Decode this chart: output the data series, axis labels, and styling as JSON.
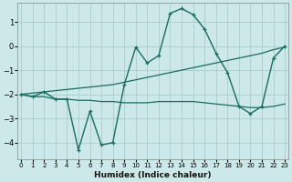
{
  "title": "",
  "xlabel": "Humidex (Indice chaleur)",
  "background_color": "#cce8e8",
  "grid_color": "#aacccc",
  "line_color": "#1a6b60",
  "x_data": [
    0,
    1,
    2,
    3,
    4,
    5,
    6,
    7,
    8,
    9,
    10,
    11,
    12,
    13,
    14,
    15,
    16,
    17,
    18,
    19,
    20,
    21,
    22,
    23
  ],
  "series1": [
    -2.0,
    -2.1,
    -1.9,
    -2.2,
    -2.2,
    -4.3,
    -2.7,
    -4.1,
    -4.0,
    -1.6,
    -0.05,
    -0.7,
    -0.4,
    1.35,
    1.55,
    1.3,
    0.7,
    -0.3,
    -1.1,
    -2.5,
    -2.8,
    -2.5,
    -0.5,
    0.0
  ],
  "series2": [
    -2.0,
    -1.95,
    -1.9,
    -1.85,
    -1.8,
    -1.75,
    -1.7,
    -1.65,
    -1.6,
    -1.5,
    -1.4,
    -1.3,
    -1.2,
    -1.1,
    -1.0,
    -0.9,
    -0.8,
    -0.7,
    -0.6,
    -0.5,
    -0.4,
    -0.3,
    -0.15,
    -0.05
  ],
  "series3": [
    -2.0,
    -2.1,
    -2.1,
    -2.2,
    -2.2,
    -2.25,
    -2.25,
    -2.3,
    -2.3,
    -2.35,
    -2.35,
    -2.35,
    -2.3,
    -2.3,
    -2.3,
    -2.3,
    -2.35,
    -2.4,
    -2.45,
    -2.5,
    -2.55,
    -2.55,
    -2.5,
    -2.4
  ],
  "xlim": [
    0,
    23
  ],
  "ylim": [
    -4.7,
    1.8
  ],
  "yticks": [
    -4,
    -3,
    -2,
    -1,
    0,
    1
  ],
  "xticks": [
    0,
    1,
    2,
    3,
    4,
    5,
    6,
    7,
    8,
    9,
    10,
    11,
    12,
    13,
    14,
    15,
    16,
    17,
    18,
    19,
    20,
    21,
    22,
    23
  ]
}
